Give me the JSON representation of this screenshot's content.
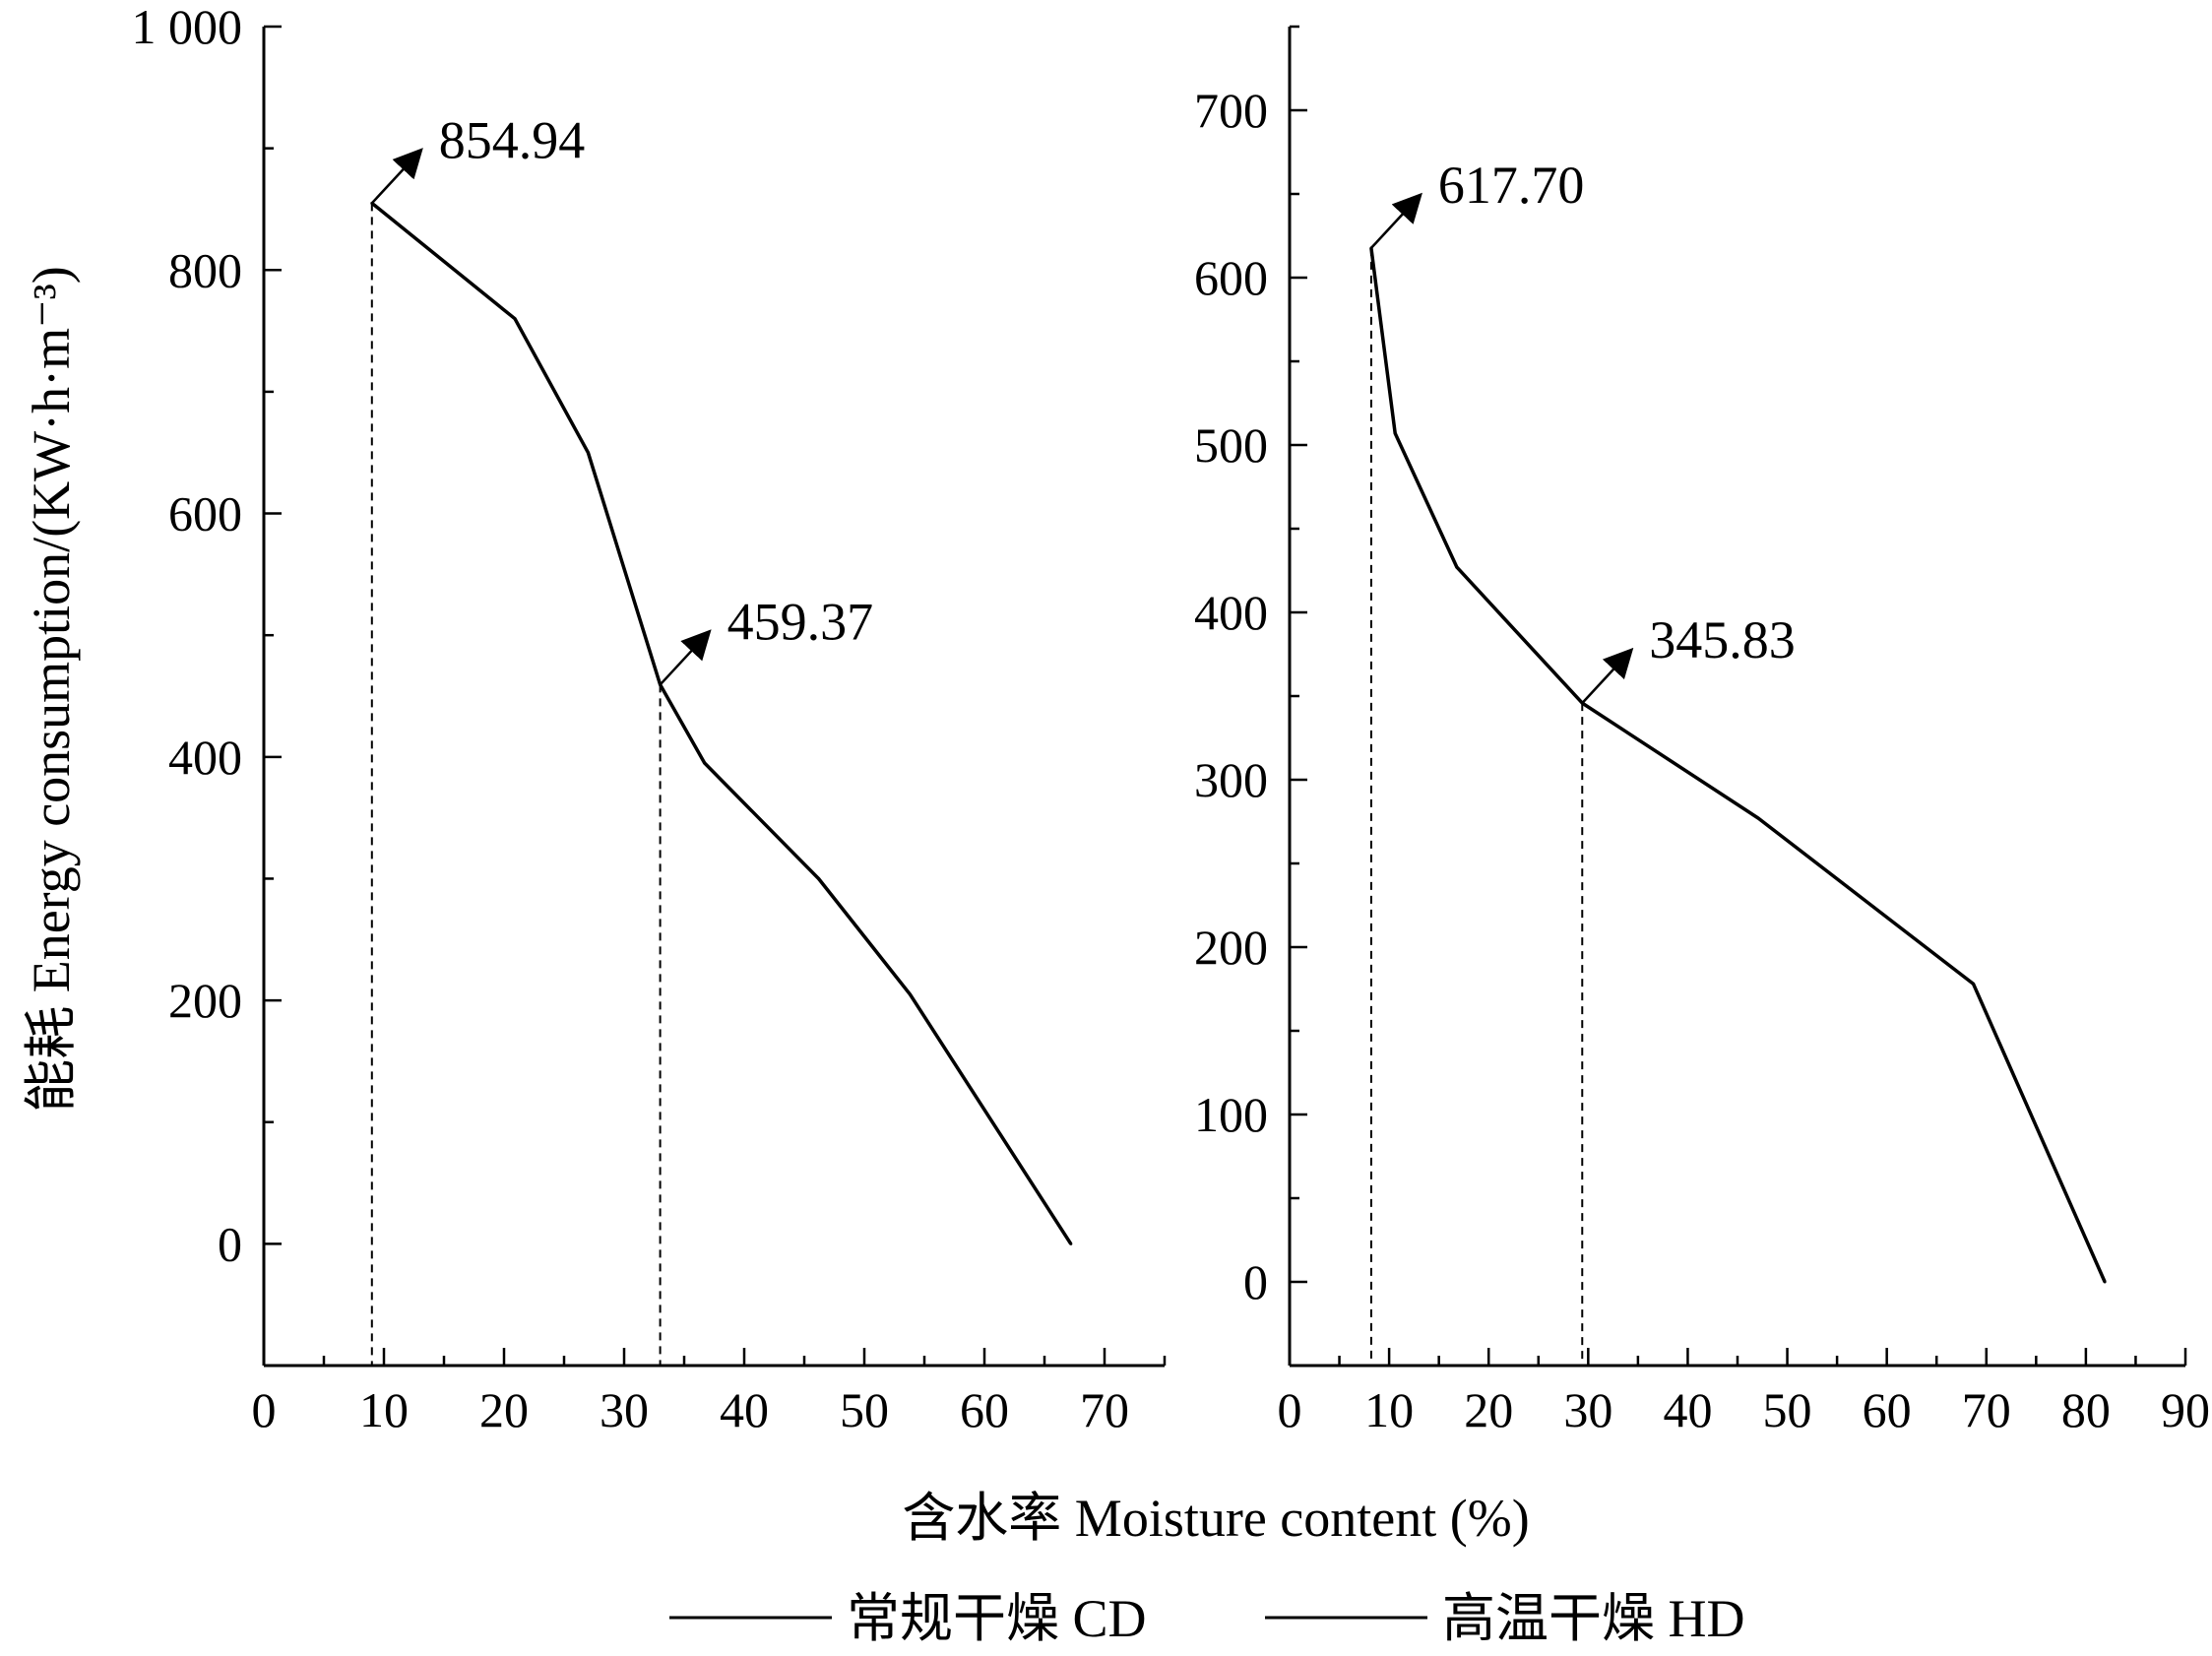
{
  "chart_data": [
    {
      "type": "line",
      "series": [
        {
          "name": "常规干燥 CD",
          "x": [
            9,
            20.9,
            27,
            33,
            36.7,
            46.2,
            53.8,
            67.2
          ],
          "y": [
            854.94,
            760,
            650,
            459.37,
            395,
            300,
            205,
            0
          ]
        }
      ],
      "xlim": [
        0,
        75
      ],
      "ylim": [
        -100,
        1000
      ],
      "xticks": [
        0,
        10,
        20,
        30,
        40,
        50,
        60,
        70
      ],
      "yticks": [
        0,
        200,
        400,
        600,
        800,
        1000
      ],
      "ytick_labels": [
        "0",
        "200",
        "400",
        "600",
        "800",
        "1 000"
      ],
      "annotations": [
        {
          "x": 9,
          "y": 854.94,
          "text": "854.94"
        },
        {
          "x": 33,
          "y": 459.37,
          "text": "459.37"
        }
      ]
    },
    {
      "type": "line",
      "series": [
        {
          "name": "高温干燥 HD",
          "x": [
            8.2,
            10.6,
            16.8,
            29.4,
            47.1,
            68.7,
            81.9
          ],
          "y": [
            617.7,
            507,
            427,
            345.83,
            277,
            178,
            0
          ]
        }
      ],
      "xlim": [
        0,
        90
      ],
      "ylim": [
        -50,
        750
      ],
      "xticks": [
        0,
        10,
        20,
        30,
        40,
        50,
        60,
        70,
        80,
        90
      ],
      "yticks": [
        0,
        100,
        200,
        300,
        400,
        500,
        600,
        700
      ],
      "ytick_labels": [
        "0",
        "100",
        "200",
        "300",
        "400",
        "500",
        "600",
        "700"
      ],
      "annotations": [
        {
          "x": 8.2,
          "y": 617.7,
          "text": "617.70"
        },
        {
          "x": 29.4,
          "y": 345.83,
          "text": "345.83"
        }
      ]
    }
  ],
  "labels": {
    "ylabel": "能耗  Energy consumption/(KW·h·m⁻³)",
    "xlabel": "含水率  Moisture content (%)"
  },
  "legend": [
    {
      "label": "常规干燥  CD"
    },
    {
      "label": "高温干燥  HD"
    }
  ],
  "colors": {
    "line": "#000000"
  }
}
